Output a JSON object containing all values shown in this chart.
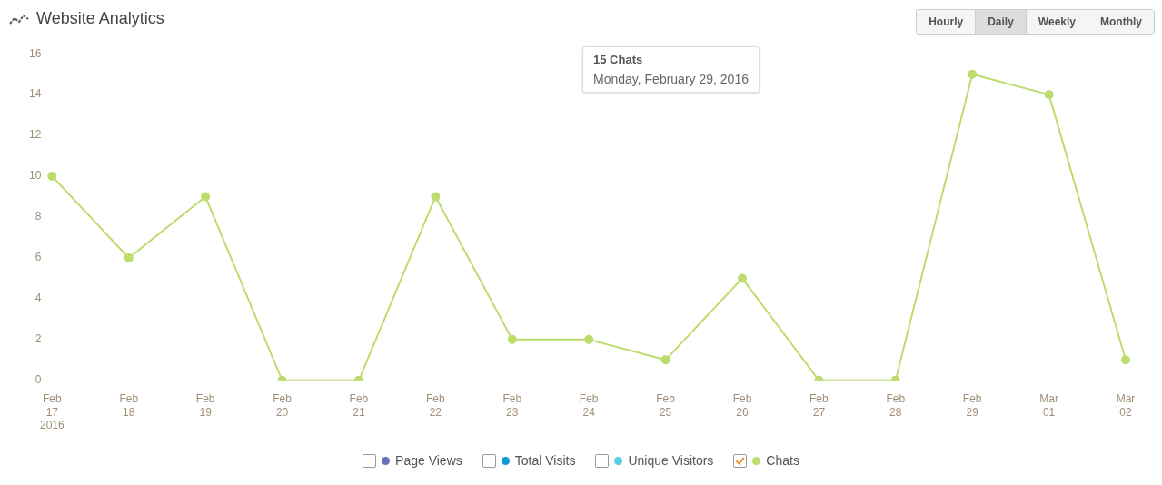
{
  "chart_data": {
    "type": "line",
    "title": "Website Analytics",
    "categories": [
      "Feb\n17\n2016",
      "Feb\n18",
      "Feb\n19",
      "Feb\n20",
      "Feb\n21",
      "Feb\n22",
      "Feb\n23",
      "Feb\n24",
      "Feb\n25",
      "Feb\n26",
      "Feb\n27",
      "Feb\n28",
      "Feb\n29",
      "Mar\n01",
      "Mar\n02"
    ],
    "series": [
      {
        "name": "Page Views",
        "color": "#6673b8",
        "values": [
          null,
          null,
          null,
          null,
          null,
          null,
          null,
          null,
          null,
          null,
          null,
          null,
          null,
          null,
          null
        ]
      },
      {
        "name": "Total Visits",
        "color": "#0a9ad6",
        "values": [
          null,
          null,
          null,
          null,
          null,
          null,
          null,
          null,
          null,
          null,
          null,
          null,
          null,
          null,
          null
        ]
      },
      {
        "name": "Unique Visitors",
        "color": "#5ccde0",
        "values": [
          null,
          null,
          null,
          null,
          null,
          null,
          null,
          null,
          null,
          null,
          null,
          null,
          null,
          null,
          null
        ]
      },
      {
        "name": "Chats",
        "color": "#bddc6e",
        "values": [
          10,
          6,
          9,
          0,
          0,
          9,
          2,
          2,
          1,
          5,
          0,
          0,
          15,
          14,
          1
        ]
      }
    ],
    "ylim": [
      0,
      16
    ],
    "yticks": [
      0,
      2,
      4,
      6,
      8,
      10,
      12,
      14,
      16
    ],
    "grid": false,
    "legend": "bottom",
    "marker": "circle",
    "line_style": "solid",
    "annotations": [
      "Hourly",
      "Daily",
      "Weekly",
      "Monthly",
      "15 Chats",
      "Monday, February 29, 2016"
    ]
  }
}
